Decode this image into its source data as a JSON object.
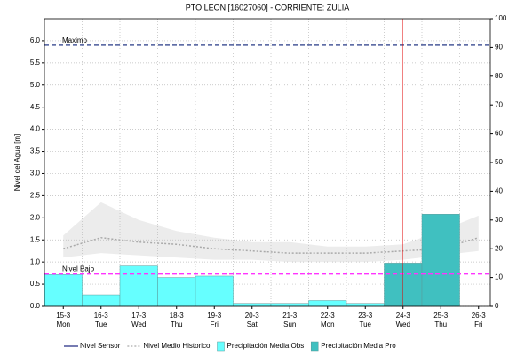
{
  "chart_data": {
    "type": "bar",
    "title": "PTO LEON [16027060] - CORRIENTE: ZULIA",
    "y_label": "Nivel del Agua [m]",
    "categories": [
      "15-3",
      "16-3",
      "17-3",
      "18-3",
      "19-3",
      "20-3",
      "21-3",
      "22-3",
      "23-3",
      "24-3",
      "25-3",
      "26-3"
    ],
    "weekdays": [
      "Mon",
      "Tue",
      "Wed",
      "Thu",
      "Fri",
      "Sat",
      "Sun",
      "Mon",
      "Tue",
      "Wed",
      "Thu",
      "Fri"
    ],
    "ylim": [
      0,
      6.5
    ],
    "yticks": [
      {
        "value": 0,
        "label": "0.0"
      },
      {
        "value": 0.5,
        "label": "0.5"
      },
      {
        "value": 1,
        "label": "1.0"
      },
      {
        "value": 1.5,
        "label": "1.5"
      },
      {
        "value": 2,
        "label": "2.0"
      },
      {
        "value": 2.5,
        "label": "2.5"
      },
      {
        "value": 3,
        "label": "3.0"
      },
      {
        "value": 3.5,
        "label": "3.5"
      },
      {
        "value": 4,
        "label": "4.0"
      },
      {
        "value": 4.5,
        "label": "4.5"
      },
      {
        "value": 5,
        "label": "5.0"
      },
      {
        "value": 5.5,
        "label": "5.5"
      },
      {
        "value": 6,
        "label": "6.0"
      }
    ],
    "y2lim": [
      0,
      100
    ],
    "y2ticks": [
      0,
      10,
      20,
      30,
      40,
      50,
      60,
      70,
      80,
      90,
      100
    ],
    "grid": true,
    "series": [
      {
        "name": "Nivel Sensor",
        "kind": "line",
        "color": "#1a237e",
        "values": [
          null,
          null,
          null,
          null,
          null,
          null,
          null,
          null,
          null,
          null,
          null,
          null
        ]
      },
      {
        "name": "Nivel Medio Historico",
        "kind": "dotted",
        "color": "#aaaaaa",
        "values": [
          1.3,
          1.55,
          1.45,
          1.4,
          1.3,
          1.25,
          1.2,
          1.2,
          1.2,
          1.25,
          1.3,
          1.55
        ]
      },
      {
        "name": "Precipitación Media Obs",
        "kind": "bar",
        "axis": "y2",
        "color": "#66ffff",
        "values": [
          11,
          4,
          14,
          10,
          10.5,
          1,
          1,
          2,
          1,
          null,
          null,
          null
        ]
      },
      {
        "name": "Precipitación Media Pro",
        "kind": "bar",
        "axis": "y2",
        "color": "#40c0c0",
        "values": [
          null,
          null,
          null,
          null,
          null,
          null,
          null,
          null,
          null,
          15,
          32,
          null
        ]
      }
    ],
    "historic_range": {
      "color": "#ececec",
      "upper": [
        1.6,
        2.35,
        1.95,
        1.7,
        1.55,
        1.45,
        1.45,
        1.35,
        1.35,
        1.4,
        1.7,
        2.05
      ],
      "lower": [
        1.1,
        1.2,
        1.15,
        1.1,
        1.05,
        1.05,
        1.0,
        1.0,
        1.0,
        1.05,
        1.15,
        1.25
      ]
    },
    "reference_lines": [
      {
        "label": "Maximo",
        "value": 5.9,
        "color": "#4a5a9a"
      },
      {
        "label": "Nivel Bajo",
        "value": 0.73,
        "color": "#ff33ff"
      }
    ]
  }
}
